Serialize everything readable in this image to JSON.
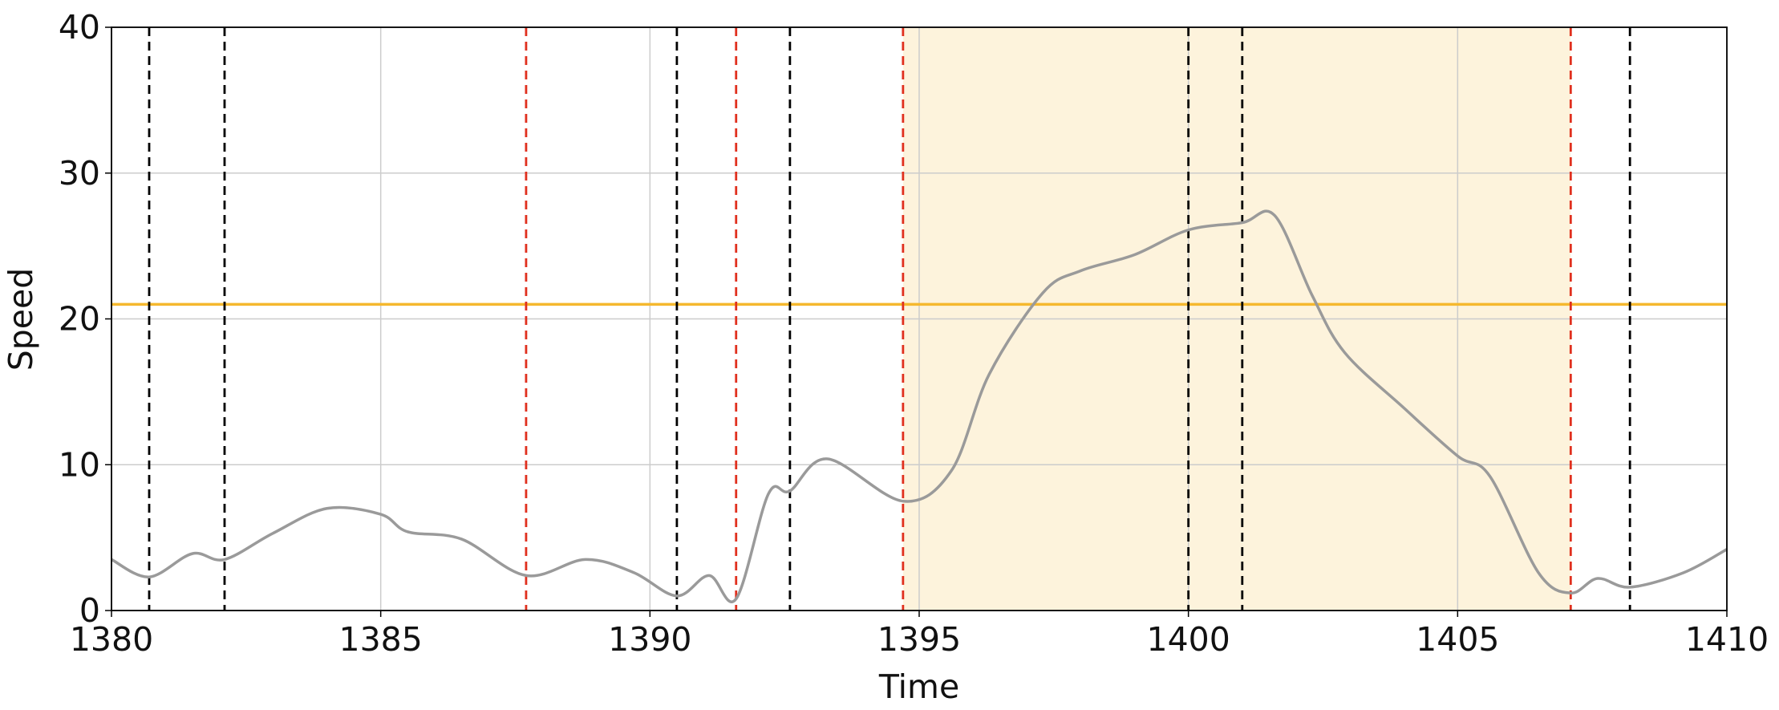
{
  "chart_data": {
    "type": "line",
    "xlabel": "Time",
    "ylabel": "Speed",
    "x": [
      1380,
      1380.7,
      1381.5,
      1382.1,
      1383,
      1384,
      1385,
      1385.5,
      1386.5,
      1387.7,
      1388.8,
      1389.7,
      1390.5,
      1391.1,
      1391.6,
      1392.2,
      1392.6,
      1393.3,
      1394.7,
      1395.6,
      1396.3,
      1397.3,
      1398,
      1399,
      1400,
      1401,
      1401.6,
      1402.3,
      1402.9,
      1404,
      1405,
      1405.6,
      1406.5,
      1407.1,
      1407.6,
      1408.2,
      1409.2,
      1410
    ],
    "series": [
      {
        "color": "#9a9a9a",
        "values": [
          3.5,
          2.3,
          3.9,
          3.5,
          5.3,
          7.0,
          6.6,
          5.4,
          4.9,
          2.4,
          3.5,
          2.6,
          1.0,
          2.4,
          0.8,
          8.0,
          8.2,
          10.4,
          7.5,
          9.6,
          16.2,
          21.8,
          23.3,
          24.4,
          26.1,
          26.6,
          27.1,
          21.6,
          17.7,
          13.9,
          10.6,
          9.2,
          2.6,
          1.2,
          2.2,
          1.6,
          2.6,
          4.2
        ]
      }
    ],
    "threshold": {
      "value": 21,
      "color": "#f5b82e"
    },
    "shaded_region": {
      "x": [
        1394.7,
        1407.1
      ],
      "color": "#fdf3dc"
    },
    "vlines": [
      {
        "x": 1380.7,
        "color": "#000000"
      },
      {
        "x": 1382.1,
        "color": "#000000"
      },
      {
        "x": 1387.7,
        "color": "#e0301e"
      },
      {
        "x": 1390.5,
        "color": "#000000"
      },
      {
        "x": 1391.6,
        "color": "#e0301e"
      },
      {
        "x": 1392.6,
        "color": "#000000"
      },
      {
        "x": 1394.7,
        "color": "#e0301e"
      },
      {
        "x": 1400.0,
        "color": "#000000"
      },
      {
        "x": 1401.0,
        "color": "#000000"
      },
      {
        "x": 1407.1,
        "color": "#e0301e"
      },
      {
        "x": 1408.2,
        "color": "#000000"
      }
    ],
    "xlim": [
      1380,
      1410
    ],
    "ylim": [
      0,
      40
    ],
    "xticks": [
      1380,
      1385,
      1390,
      1395,
      1400,
      1405,
      1410
    ],
    "yticks": [
      0,
      10,
      20,
      30,
      40
    ],
    "grid": true
  }
}
